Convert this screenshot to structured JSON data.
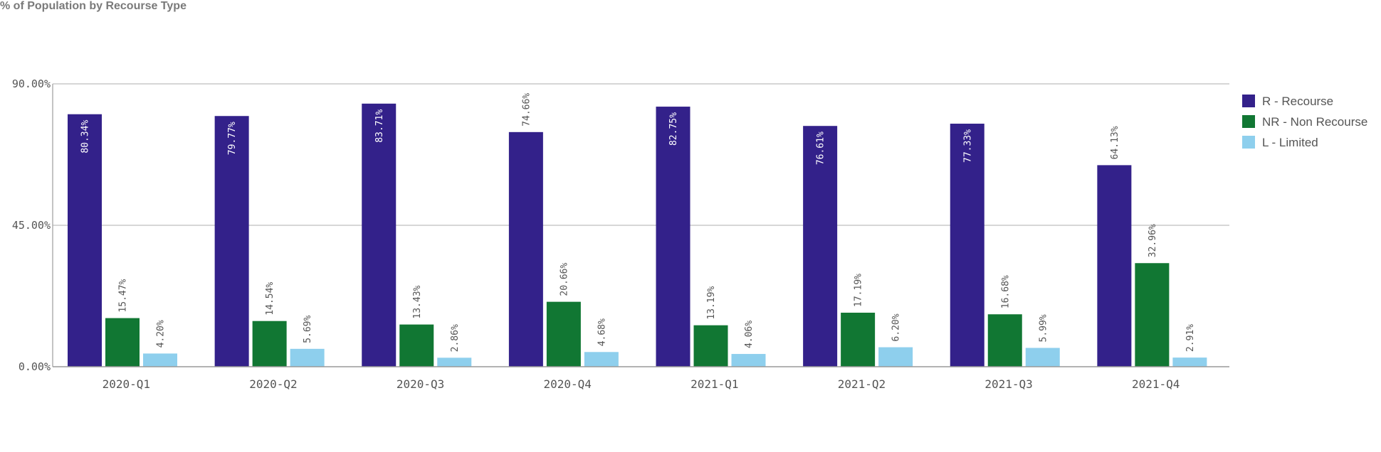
{
  "chart_data": {
    "type": "bar",
    "title": "% of Population by Recourse Type",
    "categories": [
      "2020-Q1",
      "2020-Q2",
      "2020-Q3",
      "2020-Q4",
      "2021-Q1",
      "2021-Q2",
      "2021-Q3",
      "2021-Q4"
    ],
    "series": [
      {
        "name": "R - Recourse",
        "color": "#33218a",
        "values": [
          80.34,
          79.77,
          83.71,
          74.66,
          82.75,
          76.61,
          77.33,
          64.13
        ]
      },
      {
        "name": "NR - Non Recourse",
        "color": "#117733",
        "values": [
          15.47,
          14.54,
          13.43,
          20.66,
          13.19,
          17.19,
          16.68,
          32.96
        ]
      },
      {
        "name": "L - Limited",
        "color": "#8ecfed",
        "values": [
          4.2,
          5.69,
          2.86,
          4.68,
          4.06,
          6.2,
          5.99,
          2.91
        ]
      }
    ],
    "data_labels": [
      [
        "80.34%",
        "79.77%",
        "83.71%",
        "74.66%",
        "82.75%",
        "76.61%",
        "77.33%",
        "64.13%"
      ],
      [
        "15.47%",
        "14.54%",
        "13.43%",
        "20.66%",
        "13.19%",
        "17.19%",
        "16.68%",
        "32.96%"
      ],
      [
        "4.20%",
        "5.69%",
        "2.86%",
        "4.68%",
        "4.06%",
        "6.20%",
        "5.99%",
        "2.91%"
      ]
    ],
    "ylim": [
      0,
      90
    ],
    "yticks": [
      0,
      45,
      90
    ],
    "ytick_labels": [
      "0.00%",
      "45.00%",
      "90.00%"
    ],
    "grid": true,
    "legend_position": "right"
  }
}
